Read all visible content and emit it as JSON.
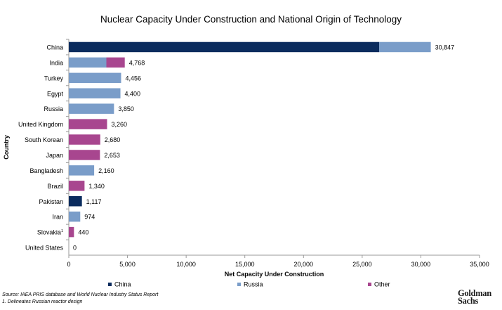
{
  "chart_data": {
    "type": "bar",
    "orientation": "horizontal",
    "stacked": true,
    "title": "Nuclear Capacity Under Construction and National Origin of Technology",
    "xlabel": "Net Capacity Under Construction",
    "ylabel": "Country",
    "xlim": [
      0,
      35000
    ],
    "xticks": [
      0,
      5000,
      10000,
      15000,
      20000,
      25000,
      30000,
      35000
    ],
    "xtick_labels": [
      "0",
      "5,000",
      "10,000",
      "15,000",
      "20,000",
      "25,000",
      "30,000",
      "35,000"
    ],
    "grid": false,
    "legend_position": "bottom",
    "categories": [
      "China",
      "India",
      "Turkey",
      "Egypt",
      "Russia",
      "United Kingdom",
      "South Korean",
      "Japan",
      "Bangladesh",
      "Brazil",
      "Pakistan",
      "Iran",
      "Slovakia",
      "United States"
    ],
    "category_superscripts": {
      "Slovakia": "1"
    },
    "series": [
      {
        "name": "China",
        "color": "#0b2c5e",
        "values": [
          26450,
          0,
          0,
          0,
          0,
          0,
          0,
          0,
          0,
          0,
          1117,
          0,
          0,
          0
        ]
      },
      {
        "name": "Russia",
        "color": "#7a9dc9",
        "values": [
          4397,
          3200,
          4456,
          4400,
          3850,
          0,
          0,
          0,
          2160,
          0,
          0,
          974,
          0,
          0
        ]
      },
      {
        "name": "Other",
        "color": "#a8468f",
        "values": [
          0,
          1568,
          0,
          0,
          0,
          3260,
          2680,
          2653,
          0,
          1340,
          0,
          0,
          440,
          0
        ]
      }
    ],
    "totals": [
      30847,
      4768,
      4456,
      4400,
      3850,
      3260,
      2680,
      2653,
      2160,
      1340,
      1117,
      974,
      440,
      0
    ],
    "total_labels": [
      "30,847",
      "4,768",
      "4,456",
      "4,400",
      "3,850",
      "3,260",
      "2,680",
      "2,653",
      "2,160",
      "1,340",
      "1,117",
      "974",
      "440",
      "0"
    ]
  },
  "footer": {
    "source": "Source: IAEA PRIS database and World Nuclear Industry Status Report",
    "note": "1.  Delineates Russian reactor design",
    "logo_line1": "Goldman",
    "logo_line2": "Sachs"
  }
}
